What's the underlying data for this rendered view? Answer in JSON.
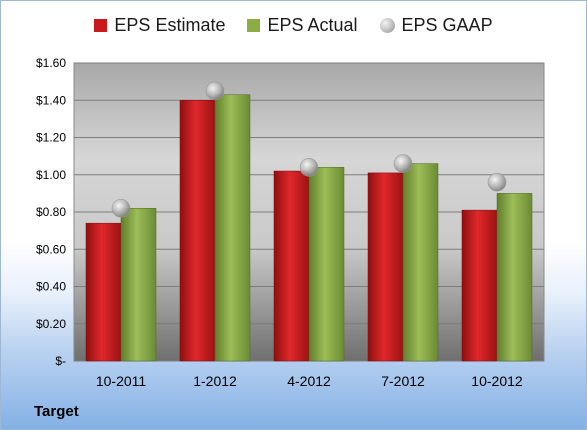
{
  "company": "Target",
  "colors": {
    "eps_estimate": "#c8191d",
    "eps_actual": "#8cad45",
    "eps_gaap": "#b5b5b5"
  },
  "chart_data": {
    "type": "bar",
    "title": "",
    "xlabel": "",
    "ylabel": "",
    "legend_position": "top",
    "grid": true,
    "ylim": [
      0,
      1.6
    ],
    "y_ticks": [
      0,
      0.2,
      0.4,
      0.6,
      0.8,
      1.0,
      1.2,
      1.4,
      1.6
    ],
    "y_tick_labels": [
      "$-",
      "$0.20",
      "$0.40",
      "$0.60",
      "$0.80",
      "$1.00",
      "$1.20",
      "$1.40",
      "$1.60"
    ],
    "categories": [
      "10-2011",
      "1-2012",
      "4-2012",
      "7-2012",
      "10-2012"
    ],
    "series": [
      {
        "name": "EPS Estimate",
        "kind": "bar",
        "values": [
          0.74,
          1.4,
          1.02,
          1.01,
          0.81
        ]
      },
      {
        "name": "EPS Actual",
        "kind": "bar",
        "values": [
          0.82,
          1.43,
          1.04,
          1.06,
          0.9
        ]
      },
      {
        "name": "EPS GAAP",
        "kind": "marker",
        "values": [
          0.82,
          1.45,
          1.04,
          1.06,
          0.96
        ]
      }
    ]
  }
}
